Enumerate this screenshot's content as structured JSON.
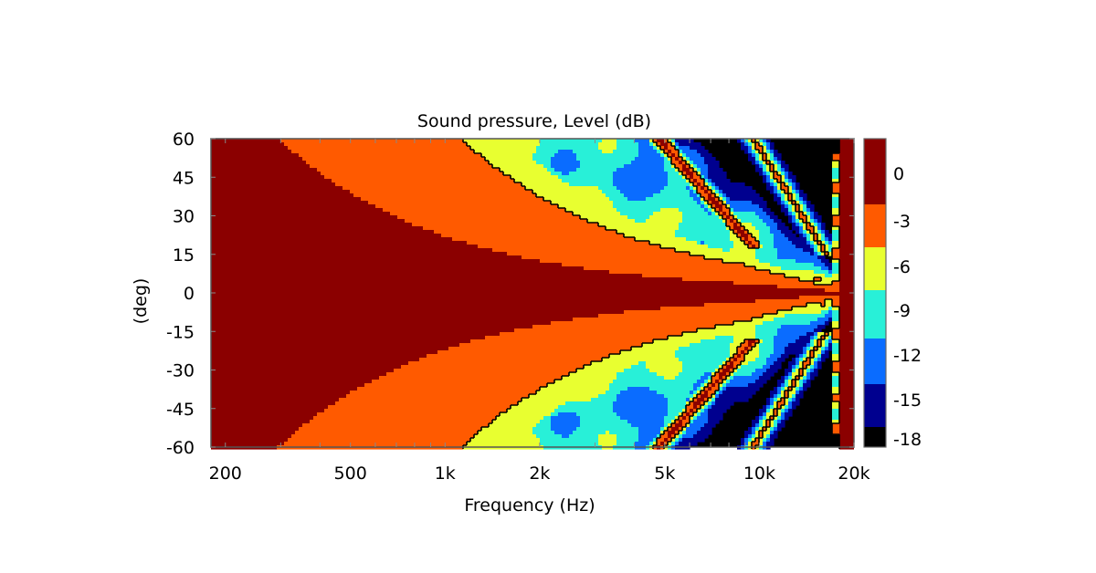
{
  "chart_data": {
    "type": "heatmap",
    "title": "Sound pressure, Level (dB)",
    "xlabel": "Frequency (Hz)",
    "ylabel": "(deg)",
    "x_scale": "log",
    "xlim": [
      180,
      20000
    ],
    "ylim": [
      -60,
      60
    ],
    "x_ticks": [
      {
        "value": 200,
        "label": "200"
      },
      {
        "value": 500,
        "label": "500"
      },
      {
        "value": 1000,
        "label": "1k"
      },
      {
        "value": 2000,
        "label": "2k"
      },
      {
        "value": 5000,
        "label": "5k"
      },
      {
        "value": 10000,
        "label": "10k"
      },
      {
        "value": 20000,
        "label": "20k"
      }
    ],
    "y_ticks": [
      {
        "value": 60,
        "label": "60"
      },
      {
        "value": 45,
        "label": "45"
      },
      {
        "value": 30,
        "label": "30"
      },
      {
        "value": 15,
        "label": "15"
      },
      {
        "value": 0,
        "label": "0"
      },
      {
        "value": -15,
        "label": "-15"
      },
      {
        "value": -30,
        "label": "-30"
      },
      {
        "value": -45,
        "label": "-45"
      },
      {
        "value": -60,
        "label": "-60"
      }
    ],
    "colorbar": {
      "levels": [
        {
          "label": "0",
          "color": "#8b0000"
        },
        {
          "label": "-3",
          "color": "#ff5a00"
        },
        {
          "label": "-6",
          "color": "#e8ff30"
        },
        {
          "label": "-9",
          "color": "#28f0d8"
        },
        {
          "label": "-12",
          "color": "#0a6cff"
        },
        {
          "label": "-15",
          "color": "#00008f"
        },
        {
          "label": "-18",
          "color": "#000000"
        }
      ]
    },
    "contour_line": "-6",
    "grid": false
  }
}
